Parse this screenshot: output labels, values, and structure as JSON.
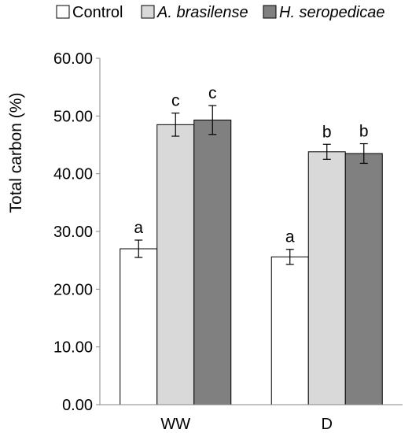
{
  "chart_data": {
    "type": "bar",
    "title": "",
    "xlabel": "",
    "ylabel": "Total carbon (%)",
    "ylim": [
      0,
      60
    ],
    "yticks": [
      0,
      10,
      20,
      30,
      40,
      50,
      60
    ],
    "ytick_labels": [
      "0.00",
      "10.00",
      "20.00",
      "30.00",
      "40.00",
      "50.00",
      "60.00"
    ],
    "grid": false,
    "legend_position": "top",
    "categories": [
      "WW",
      "D"
    ],
    "series": [
      {
        "name": "Control",
        "italic": false,
        "color": "#ffffff",
        "values": [
          27.0,
          25.6
        ],
        "errors": [
          1.5,
          1.3
        ],
        "significance": [
          "a",
          "a"
        ]
      },
      {
        "name": "A. brasilense",
        "italic": true,
        "color": "#d9d9d9",
        "values": [
          48.5,
          43.8
        ],
        "errors": [
          2.0,
          1.3
        ],
        "significance": [
          "c",
          "b"
        ]
      },
      {
        "name": "H. seropedicae",
        "italic": true,
        "color": "#808080",
        "values": [
          49.3,
          43.5
        ],
        "errors": [
          2.5,
          1.7
        ],
        "significance": [
          "c",
          "b"
        ]
      }
    ]
  }
}
